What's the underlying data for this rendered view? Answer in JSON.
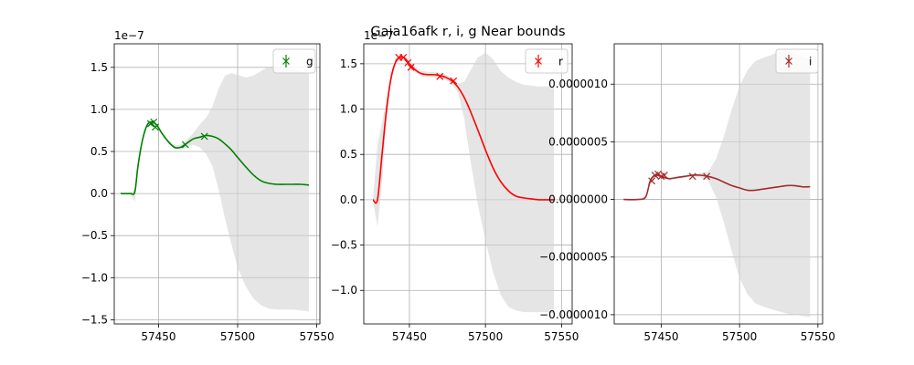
{
  "figure": {
    "title": "Gaia16afk  r, i, g Near bounds"
  },
  "chart_data": [
    {
      "type": "line",
      "title": "",
      "xlabel": "",
      "ylabel": "",
      "offset_text": "1e−7",
      "xlim": [
        57422,
        57552
      ],
      "ylim": [
        -1.55,
        1.78
      ],
      "grid": true,
      "legend_position": "top-right",
      "color": "#008000",
      "xticks": [
        {
          "v": 57450,
          "label": "57450"
        },
        {
          "v": 57500,
          "label": "57500"
        },
        {
          "v": 57550,
          "label": "57550"
        }
      ],
      "yticks": [
        {
          "v": -1.5,
          "label": "−1.5"
        },
        {
          "v": -1.0,
          "label": "−1.0"
        },
        {
          "v": -0.5,
          "label": "−0.5"
        },
        {
          "v": 0.0,
          "label": "0.0"
        },
        {
          "v": 0.5,
          "label": "0.5"
        },
        {
          "v": 1.0,
          "label": "1.0"
        },
        {
          "v": 1.5,
          "label": "1.5"
        }
      ],
      "series": [
        {
          "name": "g",
          "role": "observations",
          "x": [
            57445,
            57447,
            57448,
            57467,
            57479
          ],
          "y": [
            0.83,
            0.85,
            0.79,
            0.58,
            0.68
          ]
        },
        {
          "role": "model",
          "x": [
            57426,
            57432,
            57435,
            57437,
            57440,
            57443,
            57446,
            57449,
            57452,
            57456,
            57460,
            57464,
            57468,
            57472,
            57476,
            57480,
            57484,
            57488,
            57492,
            57496,
            57500,
            57505,
            57510,
            57515,
            57520,
            57525,
            57530,
            57535,
            57540,
            57545
          ],
          "y": [
            0.0,
            0.0,
            0.02,
            0.33,
            0.65,
            0.82,
            0.85,
            0.81,
            0.72,
            0.62,
            0.55,
            0.55,
            0.6,
            0.65,
            0.67,
            0.69,
            0.68,
            0.65,
            0.59,
            0.52,
            0.43,
            0.32,
            0.22,
            0.15,
            0.12,
            0.11,
            0.11,
            0.11,
            0.11,
            0.1
          ]
        },
        {
          "role": "band",
          "x": [
            57426,
            57432,
            57435,
            57437,
            57440,
            57443,
            57446,
            57449,
            57452,
            57456,
            57460,
            57464,
            57468,
            57472,
            57476,
            57480,
            57484,
            57488,
            57492,
            57496,
            57500,
            57505,
            57510,
            57515,
            57520,
            57525,
            57530,
            57535,
            57540,
            57545
          ],
          "upper": [
            0.0,
            0.0,
            0.05,
            0.36,
            0.67,
            0.84,
            0.87,
            0.83,
            0.74,
            0.64,
            0.57,
            0.58,
            0.64,
            0.72,
            0.82,
            0.9,
            1.03,
            1.25,
            1.4,
            1.43,
            1.41,
            1.38,
            1.4,
            1.46,
            1.51,
            1.51,
            1.5,
            1.48,
            1.45,
            1.43
          ],
          "lower": [
            0.0,
            0.0,
            -0.1,
            0.3,
            0.63,
            0.8,
            0.83,
            0.79,
            0.7,
            0.6,
            0.53,
            0.52,
            0.55,
            0.58,
            0.55,
            0.47,
            0.33,
            0.05,
            -0.3,
            -0.6,
            -0.88,
            -1.1,
            -1.25,
            -1.33,
            -1.37,
            -1.38,
            -1.38,
            -1.38,
            -1.39,
            -1.4
          ]
        }
      ]
    },
    {
      "type": "line",
      "title": "",
      "xlabel": "",
      "ylabel": "",
      "offset_text": "1e−7",
      "xlim": [
        57420,
        57557
      ],
      "ylim": [
        -1.37,
        1.72
      ],
      "grid": true,
      "legend_position": "top-right",
      "color": "#ff0000",
      "xticks": [
        {
          "v": 57450,
          "label": "57450"
        },
        {
          "v": 57500,
          "label": "57500"
        },
        {
          "v": 57550,
          "label": "57550"
        }
      ],
      "yticks": [
        {
          "v": -1.0,
          "label": "−1.0"
        },
        {
          "v": -0.5,
          "label": "−0.5"
        },
        {
          "v": 0.0,
          "label": "0.0"
        },
        {
          "v": 0.5,
          "label": "0.5"
        },
        {
          "v": 1.0,
          "label": "1.0"
        },
        {
          "v": 1.5,
          "label": "1.5"
        }
      ],
      "series": [
        {
          "name": "r",
          "role": "observations",
          "x": [
            57443,
            57446,
            57449,
            57451,
            57470,
            57479
          ],
          "y": [
            1.57,
            1.57,
            1.51,
            1.46,
            1.36,
            1.31
          ]
        },
        {
          "role": "model",
          "x": [
            57426,
            57429,
            57432,
            57435,
            57438,
            57441,
            57444,
            57447,
            57450,
            57454,
            57458,
            57462,
            57466,
            57470,
            57474,
            57478,
            57482,
            57486,
            57490,
            57495,
            57500,
            57505,
            57510,
            57515,
            57520,
            57525,
            57530,
            57535,
            57540,
            57545
          ],
          "y": [
            0.0,
            0.0,
            0.5,
            1.0,
            1.35,
            1.52,
            1.57,
            1.56,
            1.5,
            1.43,
            1.39,
            1.38,
            1.38,
            1.37,
            1.35,
            1.31,
            1.24,
            1.13,
            0.98,
            0.77,
            0.55,
            0.35,
            0.2,
            0.1,
            0.04,
            0.02,
            0.01,
            0.0,
            0.0,
            0.0
          ]
        },
        {
          "role": "band",
          "x": [
            57426,
            57429,
            57432,
            57435,
            57438,
            57441,
            57444,
            57447,
            57450,
            57454,
            57458,
            57462,
            57466,
            57470,
            57474,
            57478,
            57482,
            57486,
            57490,
            57495,
            57500,
            57505,
            57510,
            57515,
            57520,
            57525,
            57530,
            57535,
            57540,
            57545
          ],
          "upper": [
            0.0,
            0.6,
            0.85,
            1.1,
            1.38,
            1.55,
            1.6,
            1.59,
            1.53,
            1.46,
            1.42,
            1.41,
            1.41,
            1.4,
            1.38,
            1.34,
            1.28,
            1.3,
            1.42,
            1.57,
            1.62,
            1.55,
            1.42,
            1.35,
            1.3,
            1.27,
            1.26,
            1.25,
            1.25,
            1.25
          ],
          "lower": [
            0.0,
            -0.3,
            0.2,
            0.9,
            1.32,
            1.49,
            1.54,
            1.53,
            1.47,
            1.4,
            1.36,
            1.35,
            1.35,
            1.34,
            1.32,
            1.28,
            1.18,
            0.9,
            0.45,
            -0.05,
            -0.45,
            -0.8,
            -1.05,
            -1.18,
            -1.22,
            -1.24,
            -1.24,
            -1.24,
            -1.24,
            -1.25
          ]
        }
      ]
    },
    {
      "type": "line",
      "title": "",
      "xlabel": "",
      "ylabel": "",
      "offset_text": "",
      "xlim": [
        57420,
        57553
      ],
      "ylim": [
        -1.08e-06,
        1.35e-06
      ],
      "grid": true,
      "legend_position": "top-right",
      "color": "#a52a2a",
      "xticks": [
        {
          "v": 57450,
          "label": "57450"
        },
        {
          "v": 57500,
          "label": "57500"
        },
        {
          "v": 57550,
          "label": "57550"
        }
      ],
      "yticks": [
        {
          "v": -1e-06,
          "label": "−0.0000010"
        },
        {
          "v": -5e-07,
          "label": "−0.0000005"
        },
        {
          "v": 0.0,
          "label": "0.0000000"
        },
        {
          "v": 5e-07,
          "label": "0.0000005"
        },
        {
          "v": 1e-06,
          "label": "0.0000010"
        }
      ],
      "series": [
        {
          "name": "i",
          "role": "observations",
          "x": [
            57444,
            57446,
            57448,
            57450,
            57452,
            57470,
            57479
          ],
          "y": [
            1.6e-07,
            2.1e-07,
            2.2e-07,
            2e-07,
            2.1e-07,
            2e-07,
            2e-07
          ]
        },
        {
          "role": "model",
          "x": [
            57426,
            57435,
            57440,
            57443,
            57446,
            57450,
            57455,
            57460,
            57465,
            57470,
            57475,
            57480,
            57485,
            57490,
            57495,
            57500,
            57505,
            57510,
            57515,
            57520,
            57525,
            57530,
            57535,
            57540,
            57545
          ],
          "y": [
            0.0,
            0.0,
            2e-08,
            1.6e-07,
            2.1e-07,
            2e-07,
            1.8e-07,
            1.9e-07,
            2e-07,
            2.1e-07,
            2.1e-07,
            2e-07,
            1.8e-07,
            1.5e-07,
            1.2e-07,
            1e-07,
            8e-08,
            8e-08,
            9e-08,
            1e-07,
            1.1e-07,
            1.2e-07,
            1.2e-07,
            1.1e-07,
            1.1e-07
          ]
        },
        {
          "role": "band",
          "x": [
            57426,
            57435,
            57440,
            57443,
            57446,
            57450,
            57455,
            57460,
            57465,
            57470,
            57475,
            57480,
            57485,
            57490,
            57495,
            57500,
            57505,
            57510,
            57515,
            57520,
            57525,
            57530,
            57535,
            57540,
            57545
          ],
          "upper": [
            0.0,
            0.0,
            3e-08,
            1.7e-07,
            2.2e-07,
            2.1e-07,
            1.9e-07,
            2e-07,
            2.1e-07,
            2.2e-07,
            2.3e-07,
            2.4e-07,
            3.5e-07,
            5.5e-07,
            7.8e-07,
            9.8e-07,
            1.12e-06,
            1.2e-06,
            1.23e-06,
            1.25e-06,
            1.28e-06,
            1.3e-06,
            1.27e-06,
            1.24e-06,
            1.22e-06
          ],
          "lower": [
            0.0,
            0.0,
            1e-08,
            1.5e-07,
            2e-07,
            1.9e-07,
            1.7e-07,
            1.8e-07,
            1.9e-07,
            2e-07,
            1.9e-07,
            1.6e-07,
            2e-08,
            -2e-07,
            -4.5e-07,
            -6.8e-07,
            -8.2e-07,
            -9e-07,
            -9.3e-07,
            -9.5e-07,
            -9.7e-07,
            -9.9e-07,
            -1e-06,
            -1.01e-06,
            -1.02e-06
          ]
        }
      ]
    }
  ]
}
